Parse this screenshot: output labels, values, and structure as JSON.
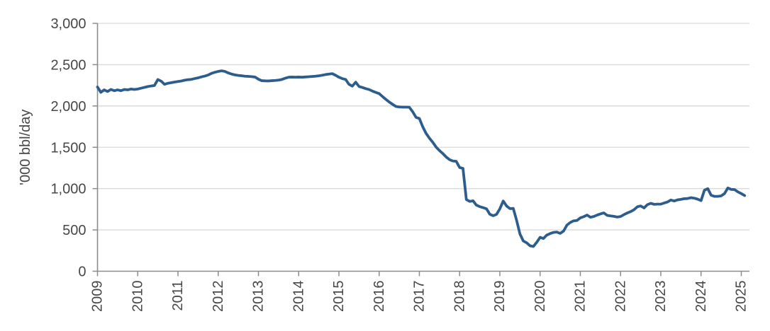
{
  "chart_data": {
    "type": "line",
    "title": "",
    "xlabel": "",
    "ylabel": "'000 bbl/day",
    "ylim": [
      0,
      3000
    ],
    "grid": "horizontal",
    "legend": "none",
    "x_interval": "monthly",
    "x_start": "2009-01",
    "points_per_year": 12,
    "x_label_rotation": -90,
    "y_ticks": [
      {
        "value": 0,
        "label": "0"
      },
      {
        "value": 500,
        "label": "500"
      },
      {
        "value": 1000,
        "label": "1,000"
      },
      {
        "value": 1500,
        "label": "1,500"
      },
      {
        "value": 2000,
        "label": "2,000"
      },
      {
        "value": 2500,
        "label": "2,500"
      },
      {
        "value": 3000,
        "label": "3,000"
      }
    ],
    "x_ticks": [
      {
        "year": 2009,
        "label": "2009"
      },
      {
        "year": 2010,
        "label": "2010"
      },
      {
        "year": 2011,
        "label": "2011"
      },
      {
        "year": 2012,
        "label": "2012"
      },
      {
        "year": 2013,
        "label": "2013"
      },
      {
        "year": 2014,
        "label": "2014"
      },
      {
        "year": 2015,
        "label": "2015"
      },
      {
        "year": 2016,
        "label": "2016"
      },
      {
        "year": 2017,
        "label": "2017"
      },
      {
        "year": 2018,
        "label": "2018"
      },
      {
        "year": 2019,
        "label": "2019"
      },
      {
        "year": 2020,
        "label": "2020"
      },
      {
        "year": 2021,
        "label": "2021"
      },
      {
        "year": 2022,
        "label": "2022"
      },
      {
        "year": 2023,
        "label": "2023"
      },
      {
        "year": 2024,
        "label": "2024"
      },
      {
        "year": 2025,
        "label": "2025"
      }
    ],
    "series": [
      {
        "name": "",
        "color": "#2c5d8c",
        "values": [
          2230,
          2165,
          2195,
          2175,
          2200,
          2185,
          2195,
          2185,
          2200,
          2195,
          2205,
          2200,
          2205,
          2215,
          2225,
          2235,
          2242,
          2248,
          2320,
          2300,
          2262,
          2275,
          2282,
          2290,
          2296,
          2302,
          2312,
          2318,
          2322,
          2332,
          2340,
          2352,
          2362,
          2375,
          2395,
          2408,
          2418,
          2425,
          2418,
          2400,
          2386,
          2376,
          2370,
          2366,
          2360,
          2358,
          2355,
          2350,
          2324,
          2306,
          2304,
          2303,
          2306,
          2309,
          2313,
          2321,
          2336,
          2348,
          2350,
          2348,
          2350,
          2348,
          2351,
          2354,
          2357,
          2360,
          2365,
          2372,
          2380,
          2386,
          2391,
          2372,
          2348,
          2331,
          2321,
          2262,
          2240,
          2288,
          2236,
          2224,
          2210,
          2199,
          2180,
          2164,
          2150,
          2114,
          2080,
          2048,
          2020,
          1994,
          1988,
          1986,
          1986,
          1985,
          1930,
          1862,
          1848,
          1748,
          1668,
          1610,
          1560,
          1502,
          1460,
          1424,
          1382,
          1350,
          1334,
          1330,
          1255,
          1245,
          868,
          845,
          852,
          800,
          782,
          770,
          756,
          690,
          672,
          688,
          756,
          850,
          790,
          758,
          760,
          615,
          450,
          366,
          344,
          308,
          300,
          350,
          410,
          396,
          438,
          456,
          470,
          474,
          458,
          486,
          558,
          590,
          610,
          614,
          646,
          660,
          680,
          654,
          662,
          680,
          694,
          706,
          676,
          670,
          664,
          656,
          662,
          685,
          705,
          722,
          744,
          780,
          790,
          766,
          806,
          822,
          810,
          812,
          812,
          826,
          838,
          862,
          850,
          864,
          870,
          878,
          880,
          890,
          884,
          872,
          855,
          980,
          1000,
          920,
          906,
          906,
          912,
          940,
          1008,
          990,
          988,
          960,
          940,
          916
        ]
      }
    ]
  },
  "colors": {
    "line": "#2c5d8c",
    "grid": "#dadada",
    "axis": "#8c8c8c",
    "text": "#474747",
    "background": "#ffffff"
  }
}
